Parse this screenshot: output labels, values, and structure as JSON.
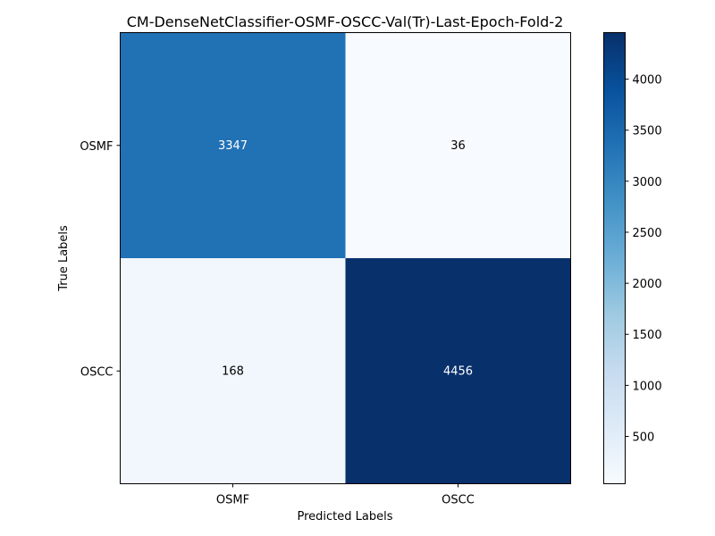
{
  "chart_data": {
    "type": "heatmap",
    "title": "CM-DenseNetClassifier-OSMF-OSCC-Val(Tr)-Last-Epoch-Fold-2",
    "xlabel": "Predicted Labels",
    "ylabel": "True Labels",
    "x_categories": [
      "OSMF",
      "OSCC"
    ],
    "y_categories": [
      "OSMF",
      "OSCC"
    ],
    "matrix": [
      [
        3347,
        36
      ],
      [
        168,
        4456
      ]
    ],
    "colormap": "Blues",
    "color_range": [
      36,
      4456
    ],
    "colorbar_ticks": [
      500,
      1000,
      1500,
      2000,
      2500,
      3000,
      3500,
      4000
    ],
    "grid": false
  }
}
